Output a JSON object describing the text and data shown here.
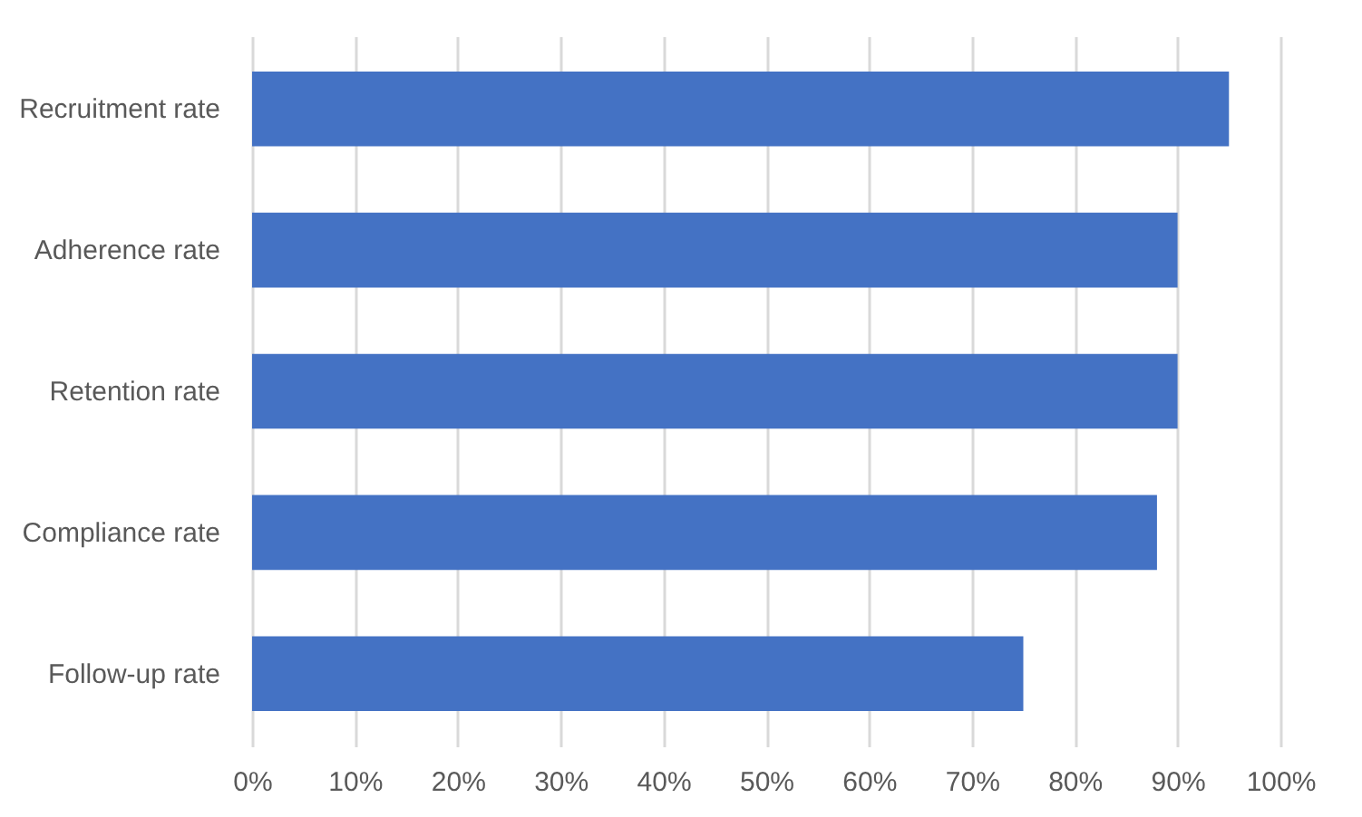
{
  "chart_data": {
    "type": "bar",
    "orientation": "horizontal",
    "categories": [
      "Recruitment rate",
      "Adherence rate",
      "Retention rate",
      "Compliance rate",
      "Follow-up rate"
    ],
    "values": [
      95,
      90,
      90,
      88,
      75
    ],
    "color": "#4472c4",
    "xlim": [
      0,
      100
    ],
    "xticks": [
      {
        "value": 0,
        "label": "0%"
      },
      {
        "value": 10,
        "label": "10%"
      },
      {
        "value": 20,
        "label": "20%"
      },
      {
        "value": 30,
        "label": "30%"
      },
      {
        "value": 40,
        "label": "40%"
      },
      {
        "value": 50,
        "label": "50%"
      },
      {
        "value": 60,
        "label": "60%"
      },
      {
        "value": 70,
        "label": "70%"
      },
      {
        "value": 80,
        "label": "80%"
      },
      {
        "value": 90,
        "label": "90%"
      },
      {
        "value": 100,
        "label": "100%"
      }
    ],
    "grid": "x"
  }
}
